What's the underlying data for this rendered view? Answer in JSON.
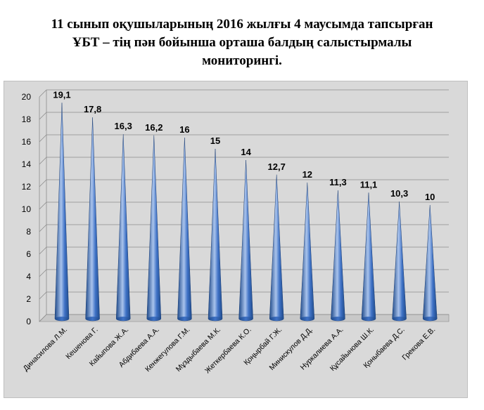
{
  "title_lines": [
    "11 сынып оқушыларының 2016 жылғы 4 маусымда тапсырған",
    "ҰБТ – тің пән бойынша  орташа балдың  салыстырмалы",
    "мониторингі."
  ],
  "chart_data": {
    "type": "bar",
    "shape": "cone",
    "title": "11 сынып оқушыларының 2016 жылғы 4 маусымда тапсырған ҰБТ – тің пән бойынша  орташа балдың  салыстырмалы мониторингі.",
    "categories": [
      "Динасилова Л.М.",
      "Кешенова  Г.",
      "Кайыпова Ж.А.",
      "Абдибаева А.А.",
      "Кенжегулова  Г.М.",
      "Мұздыбаева М.К.",
      "Жеткербаева  К.О.",
      "Қоңырбай Г.Ж.",
      "Минискулов Д.Д.",
      "Нуркалиева А.А.",
      "Құсайынова Ш.К.",
      "Қоныбаева Д.С.",
      "Грекова Е.В."
    ],
    "values": [
      19.1,
      17.8,
      16.3,
      16.2,
      16,
      15,
      14,
      12.7,
      12,
      11.3,
      11.1,
      10.3,
      10
    ],
    "value_labels": [
      "19,1",
      "17,8",
      "16,3",
      "16,2",
      "16",
      "15",
      "14",
      "12,7",
      "12",
      "11,3",
      "11,1",
      "10,3",
      "10"
    ],
    "ylim": [
      0,
      20
    ],
    "yticks": [
      "0",
      "2",
      "4",
      "6",
      "8",
      "10",
      "12",
      "14",
      "16",
      "18",
      "20"
    ],
    "grid": true,
    "legend": "none",
    "colors": {
      "background": "#d9d9d9",
      "bar_dark": "#1f4a8a",
      "bar_mid": "#3f72c6",
      "bar_light": "#a9c3ec"
    }
  }
}
